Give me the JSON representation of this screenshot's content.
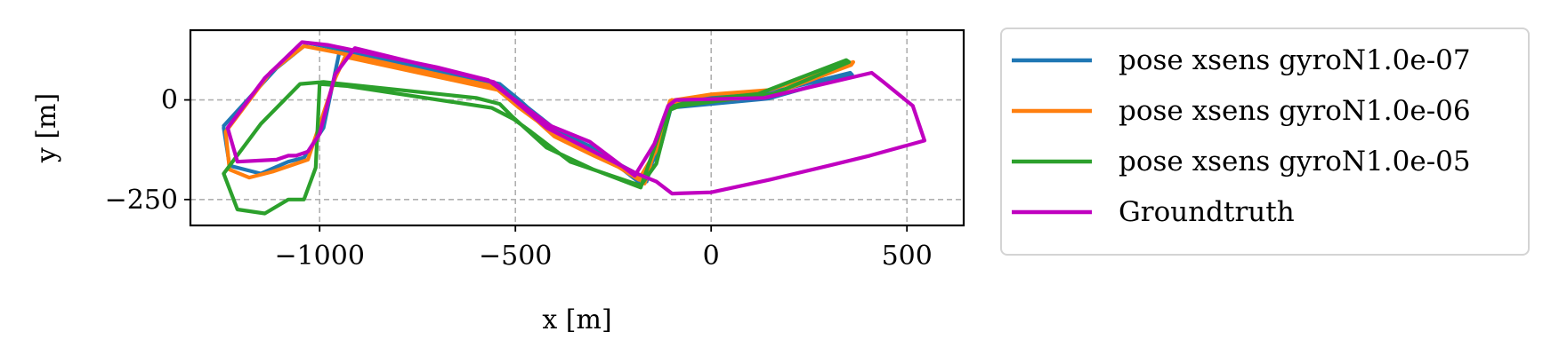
{
  "chart_data": {
    "type": "line",
    "title": "",
    "xlabel": "x [m]",
    "ylabel": "y [m]",
    "xlim": [
      -1330,
      645
    ],
    "ylim": [
      -315,
      175
    ],
    "x_ticks": [
      {
        "value": -1000,
        "label": "−1000"
      },
      {
        "value": -500,
        "label": "−500"
      },
      {
        "value": 0,
        "label": "0"
      },
      {
        "value": 500,
        "label": "500"
      }
    ],
    "y_ticks": [
      {
        "value": 0,
        "label": "0"
      },
      {
        "value": -250,
        "label": "−250"
      }
    ],
    "grid": true,
    "grid_style": "dashed",
    "legend_position": "outside-right",
    "series": [
      {
        "name": "pose xsens gyroN1.0e-07",
        "color": "#1f77b4",
        "points": [
          [
            -1245,
            -65
          ],
          [
            -1110,
            80
          ],
          [
            -1030,
            143
          ],
          [
            -940,
            125
          ],
          [
            -680,
            70
          ],
          [
            -540,
            40
          ],
          [
            -490,
            0
          ],
          [
            -400,
            -80
          ],
          [
            -300,
            -128
          ],
          [
            -200,
            -180
          ],
          [
            -165,
            -205
          ],
          [
            -105,
            -5
          ],
          [
            0,
            8
          ],
          [
            150,
            18
          ],
          [
            355,
            68
          ],
          [
            360,
            63
          ],
          [
            145,
            3
          ],
          [
            -85,
            -18
          ],
          [
            -100,
            -10
          ],
          [
            -130,
            -120
          ],
          [
            -180,
            -210
          ],
          [
            -290,
            -125
          ],
          [
            -390,
            -80
          ],
          [
            -480,
            -10
          ],
          [
            -530,
            30
          ],
          [
            -950,
            118
          ],
          [
            -990,
            -70
          ],
          [
            -1040,
            -145
          ],
          [
            -1080,
            -155
          ],
          [
            -1150,
            -185
          ],
          [
            -1230,
            -165
          ],
          [
            -1245,
            -70
          ]
        ]
      },
      {
        "name": "pose xsens gyroN1.0e-06",
        "color": "#ff7f0e",
        "points": [
          [
            -1240,
            -80
          ],
          [
            -1125,
            70
          ],
          [
            -1040,
            135
          ],
          [
            -950,
            118
          ],
          [
            -680,
            60
          ],
          [
            -545,
            32
          ],
          [
            -495,
            -8
          ],
          [
            -400,
            -92
          ],
          [
            -300,
            -140
          ],
          [
            -200,
            -185
          ],
          [
            -170,
            -210
          ],
          [
            -105,
            -2
          ],
          [
            0,
            14
          ],
          [
            150,
            25
          ],
          [
            363,
            95
          ],
          [
            358,
            88
          ],
          [
            145,
            10
          ],
          [
            -85,
            -10
          ],
          [
            -100,
            0
          ],
          [
            -130,
            -110
          ],
          [
            -185,
            -200
          ],
          [
            -300,
            -130
          ],
          [
            -400,
            -85
          ],
          [
            -490,
            -20
          ],
          [
            -545,
            25
          ],
          [
            -935,
            108
          ],
          [
            -960,
            55
          ],
          [
            -1030,
            -150
          ],
          [
            -1060,
            -160
          ],
          [
            -1120,
            -180
          ],
          [
            -1180,
            -195
          ],
          [
            -1230,
            -175
          ],
          [
            -1240,
            -80
          ]
        ]
      },
      {
        "name": "pose xsens gyroN1.0e-05",
        "color": "#2ca02c",
        "points": [
          [
            -1245,
            -185
          ],
          [
            -1150,
            -60
          ],
          [
            -1050,
            40
          ],
          [
            -990,
            45
          ],
          [
            -600,
            5
          ],
          [
            -540,
            -10
          ],
          [
            -510,
            -40
          ],
          [
            -420,
            -120
          ],
          [
            -300,
            -175
          ],
          [
            -180,
            -220
          ],
          [
            -110,
            -20
          ],
          [
            -60,
            -5
          ],
          [
            0,
            3
          ],
          [
            120,
            15
          ],
          [
            345,
            100
          ],
          [
            352,
            95
          ],
          [
            160,
            15
          ],
          [
            -80,
            -15
          ],
          [
            -105,
            -25
          ],
          [
            -140,
            -160
          ],
          [
            -180,
            -215
          ],
          [
            -360,
            -155
          ],
          [
            -460,
            -80
          ],
          [
            -505,
            -48
          ],
          [
            -560,
            -20
          ],
          [
            -930,
            35
          ],
          [
            -1000,
            40
          ],
          [
            -1010,
            -170
          ],
          [
            -1040,
            -250
          ],
          [
            -1080,
            -250
          ],
          [
            -1140,
            -285
          ],
          [
            -1210,
            -275
          ],
          [
            -1245,
            -185
          ]
        ]
      },
      {
        "name": "Groundtruth",
        "color": "#c000c0",
        "points": [
          [
            -1235,
            -70
          ],
          [
            -1140,
            55
          ],
          [
            -1045,
            145
          ],
          [
            -980,
            138
          ],
          [
            -700,
            82
          ],
          [
            -570,
            50
          ],
          [
            -510,
            5
          ],
          [
            -420,
            -70
          ],
          [
            -320,
            -120
          ],
          [
            -190,
            -185
          ],
          [
            -140,
            -205
          ],
          [
            -100,
            -235
          ],
          [
            0,
            -232
          ],
          [
            150,
            -200
          ],
          [
            300,
            -165
          ],
          [
            405,
            -140
          ],
          [
            545,
            -102
          ],
          [
            515,
            -15
          ],
          [
            440,
            45
          ],
          [
            410,
            68
          ],
          [
            135,
            5
          ],
          [
            -90,
            0
          ],
          [
            -110,
            -15
          ],
          [
            -145,
            -110
          ],
          [
            -195,
            -190
          ],
          [
            -310,
            -105
          ],
          [
            -410,
            -65
          ],
          [
            -515,
            10
          ],
          [
            -555,
            45
          ],
          [
            -910,
            130
          ],
          [
            -960,
            65
          ],
          [
            -1000,
            -85
          ],
          [
            -1030,
            -130
          ],
          [
            -1060,
            -140
          ],
          [
            -1080,
            -140
          ],
          [
            -1110,
            -150
          ],
          [
            -1210,
            -155
          ],
          [
            -1235,
            -70
          ]
        ]
      }
    ]
  }
}
